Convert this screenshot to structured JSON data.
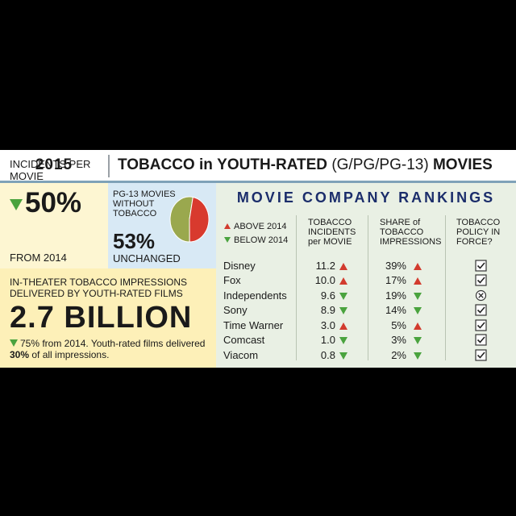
{
  "header": {
    "year": "2015",
    "title_bold_1": "TOBACCO",
    "title_in": "in",
    "title_bold_2": "YOUTH-RATED",
    "title_paren": "(G/PG/PG-13)",
    "title_bold_3": "MOVIES"
  },
  "incidents": {
    "label": "INCIDENTS PER MOVIE",
    "value": "50%",
    "direction": "down",
    "from": "FROM 2014"
  },
  "pg13": {
    "label": "PG-13 MOVIES WITHOUT TOBACCO",
    "value": "53%",
    "sub": "UNCHANGED",
    "pie_fraction": 0.53,
    "pie_colors": {
      "without": "#9aa84e",
      "with": "#d83a2e"
    }
  },
  "theater": {
    "label": "IN-THEATER TOBACCO IMPRESSIONS DELIVERED BY YOUTH-RATED FILMS",
    "value": "2.7 BILLION",
    "note_1": "75% from 2014. Youth-rated films delivered",
    "note_bold": "30%",
    "note_2": "of all impressions."
  },
  "rankings": {
    "title": "MOVIE COMPANY RANKINGS",
    "legend_up": "ABOVE 2014",
    "legend_down": "BELOW 2014",
    "col_incidents": "TOBACCO INCIDENTS per MOVIE",
    "col_share": "SHARE of TOBACCO IMPRESSIONS",
    "col_policy": "TOBACCO POLICY IN FORCE?",
    "rows": [
      {
        "company": "Disney",
        "incidents": "11.2",
        "inc_dir": "up",
        "share": "39%",
        "share_dir": "up",
        "policy": "check"
      },
      {
        "company": "Fox",
        "incidents": "10.0",
        "inc_dir": "up",
        "share": "17%",
        "share_dir": "up",
        "policy": "check"
      },
      {
        "company": "Independents",
        "incidents": "9.6",
        "inc_dir": "down",
        "share": "19%",
        "share_dir": "down",
        "policy": "none"
      },
      {
        "company": "Sony",
        "incidents": "8.9",
        "inc_dir": "down",
        "share": "14%",
        "share_dir": "down",
        "policy": "check"
      },
      {
        "company": "Time Warner",
        "incidents": "3.0",
        "inc_dir": "up",
        "share": "5%",
        "share_dir": "up",
        "policy": "check"
      },
      {
        "company": "Comcast",
        "incidents": "1.0",
        "inc_dir": "down",
        "share": "3%",
        "share_dir": "down",
        "policy": "check"
      },
      {
        "company": "Viacom",
        "incidents": "0.8",
        "inc_dir": "down",
        "share": "2%",
        "share_dir": "down",
        "policy": "check"
      }
    ]
  },
  "colors": {
    "up": "#d23b2e",
    "down": "#4aa33e",
    "rank_title": "#1b2d6b"
  }
}
